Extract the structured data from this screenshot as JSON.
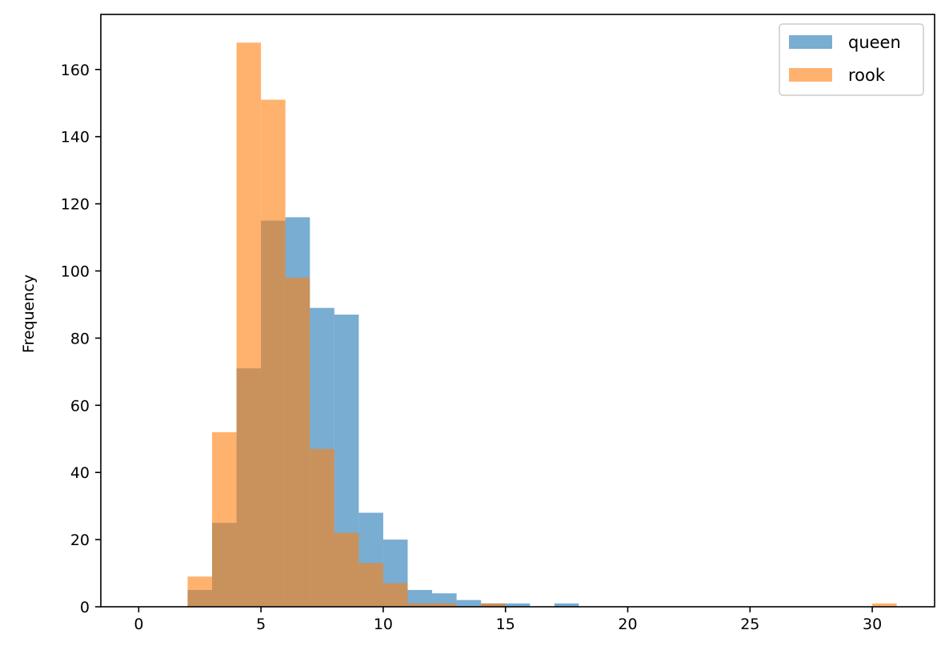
{
  "chart_data": {
    "type": "histogram",
    "title": "",
    "xlabel": "",
    "ylabel": "Frequency",
    "xlim": [
      -1.55,
      32.55
    ],
    "ylim": [
      0,
      176.4
    ],
    "xticks": [
      0,
      5,
      10,
      15,
      20,
      25,
      30
    ],
    "yticks": [
      0,
      20,
      40,
      60,
      80,
      100,
      120,
      140,
      160
    ],
    "bin_edges": [
      0,
      1,
      2,
      3,
      4,
      5,
      6,
      7,
      8,
      9,
      10,
      11,
      12,
      13,
      14,
      15,
      16,
      17,
      18,
      19,
      20,
      21,
      22,
      23,
      24,
      25,
      26,
      27,
      28,
      29,
      30,
      31
    ],
    "grid": false,
    "legend": "top-right",
    "series": [
      {
        "name": "queen",
        "color": "#1f77b4",
        "alpha": 0.6,
        "values": [
          0,
          0,
          5,
          25,
          71,
          115,
          116,
          89,
          87,
          28,
          20,
          5,
          4,
          2,
          1,
          1,
          0,
          1,
          0,
          0,
          0,
          0,
          0,
          0,
          0,
          0,
          0,
          0,
          0,
          0,
          0
        ]
      },
      {
        "name": "rook",
        "color": "#ff7f0e",
        "alpha": 0.6,
        "values": [
          0,
          0,
          9,
          52,
          168,
          151,
          98,
          47,
          22,
          13,
          7,
          1,
          1,
          0,
          1,
          0,
          0,
          0,
          0,
          0,
          0,
          0,
          0,
          0,
          0,
          0,
          0,
          0,
          0,
          0,
          1
        ]
      }
    ]
  }
}
